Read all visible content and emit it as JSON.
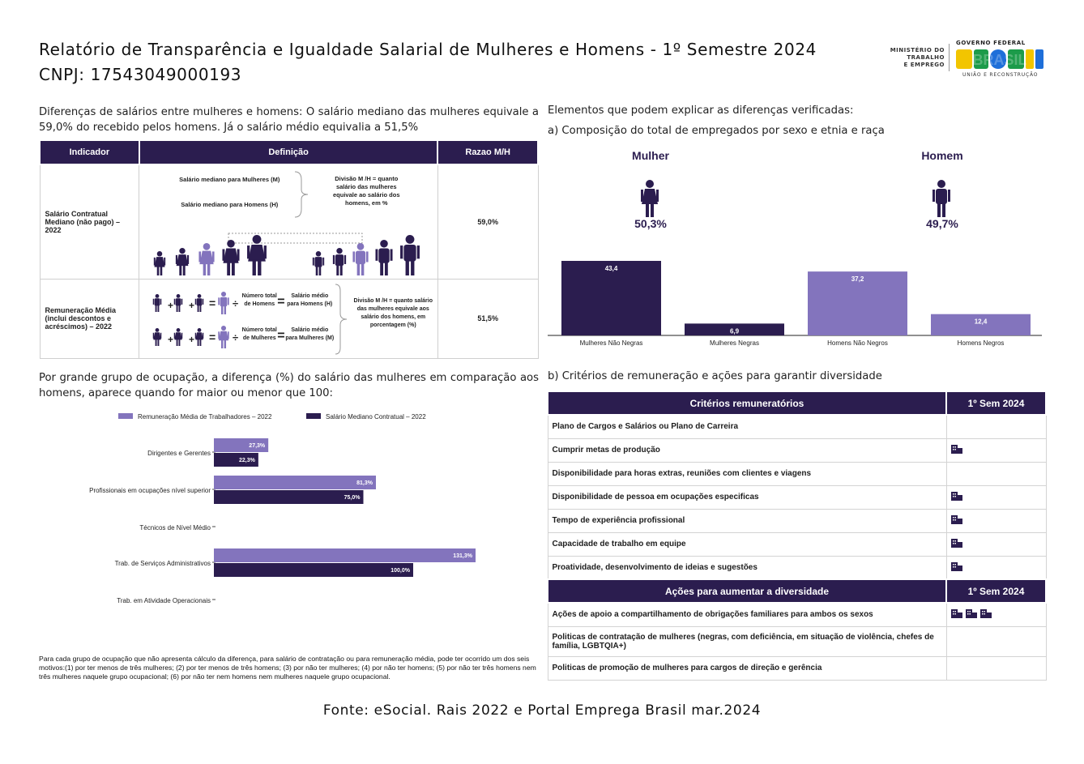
{
  "header": {
    "title": "Relatório de Transparência e Igualdade Salarial de Mulheres e Homens - 1º Semestre 2024",
    "cnpj": "CNPJ: 17543049000193",
    "logo_ministry": [
      "MINISTÉRIO DO",
      "TRABALHO",
      "E EMPREGO"
    ],
    "logo_gov": "GOVERNO FEDERAL",
    "logo_brasil": "BRASIL",
    "logo_slogan": "UNIÃO E RECONSTRUÇÃO"
  },
  "intro": "Diferenças de salários entre mulheres e homens: O salário mediano das mulheres equivale a 59,0% do recebido pelos homens. Já o salário médio equivalia a 51,5%",
  "indicator_table": {
    "headers": [
      "Indicador",
      "Definição",
      "Razao M/H"
    ],
    "rows": [
      {
        "indicator": "Salário Contratual Mediano (não pago) – 2022",
        "def_women": "Salário mediano para Mulheres (M)",
        "def_men": "Salário mediano para Homens (H)",
        "def_division": "Divisão M /H = quanto salário das mulheres equivale ao salário dos homens, em %",
        "ratio": "59,0%"
      },
      {
        "indicator": "Remuneração Média (inclui descontos e acréscimos) – 2022",
        "def_total_men": "Número total de Homens",
        "def_avg_men": "Salário médio para Homens (H)",
        "def_total_women": "Número total de Mulheres",
        "def_avg_women": "Salário médio para Mulheres (M)",
        "def_division": "Divisão M /H = quanto salário das mulheres equivale aos salário dos homens, em porcentagem (%)",
        "ratio": "51,5%"
      }
    ]
  },
  "occupation": {
    "title": "Por grande grupo de ocupação, a diferença (%) do salário das mulheres em comparação aos homens, aparece quando for maior ou menor que 100:",
    "note": "Para cada grupo de ocupação que não apresenta cálculo da diferença, para salário de contratação ou para remuneração média, pode ter ocorrido um dos seis motivos:(1) por ter menos de três mulheres; (2) por ter menos de três homens; (3) por não ter mulheres; (4) por não ter homens; (5) por não ter três homens nem três mulheres naquele grupo ocupacional; (6) por não ter nem homens nem mulheres naquele grupo ocupacional."
  },
  "chart_data": [
    {
      "type": "bar",
      "orientation": "horizontal",
      "categories": [
        "Dirigentes e Gerentes",
        "Profissionais em ocupações nível superior",
        "Técnicos de Nível Médio",
        "Trab. de Serviços Administrativos",
        "Trab. em Atividade Operacionais"
      ],
      "series": [
        {
          "name": "Remuneração Média de Trabalhadores – 2022",
          "values": [
            27.3,
            81.3,
            null,
            131.3,
            null
          ],
          "labels": [
            "27,3%",
            "81,3%",
            "",
            "131,3%",
            ""
          ],
          "color": "#8374bd"
        },
        {
          "name": "Salário Mediano Contratual – 2022",
          "values": [
            22.3,
            75.0,
            null,
            100.0,
            null
          ],
          "labels": [
            "22,3%",
            "75,0%",
            "",
            "100,0%",
            ""
          ],
          "color": "#2b1d4f"
        }
      ],
      "legend": "top"
    },
    {
      "type": "bar",
      "categories": [
        "Mulheres Não Negras",
        "Mulheres Negras",
        "Homens Não Negros",
        "Homens Negros"
      ],
      "values": [
        43.4,
        6.9,
        37.2,
        12.4
      ],
      "labels": [
        "43,4",
        "6,9",
        "37,2",
        "12,4"
      ],
      "colors": [
        "#2b1d4f",
        "#2b1d4f",
        "#8374bd",
        "#8374bd"
      ]
    }
  ],
  "right": {
    "heading": "Elementos que podem explicar as diferenças verificadas:",
    "section_a": "a) Composição do total de empregados por sexo e etnia e raça",
    "woman_label": "Mulher",
    "woman_pct": "50,3%",
    "man_label": "Homem",
    "man_pct": "49,7%",
    "section_b": "b) Critérios de remuneração e ações para garantir diversidade"
  },
  "criteria": {
    "header": [
      "Critérios remuneratórios",
      "1º Sem 2024"
    ],
    "rows": [
      {
        "label": "Plano de Cargos e Salários ou Plano de Carreira",
        "icons": 0
      },
      {
        "label": "Cumprir metas de produção",
        "icons": 1
      },
      {
        "label": "Disponibilidade para horas extras, reuniões com clientes e viagens",
        "icons": 0
      },
      {
        "label": "Disponibilidade de pessoa em ocupações especificas",
        "icons": 1
      },
      {
        "label": "Tempo de experiência profissional",
        "icons": 1
      },
      {
        "label": "Capacidade de trabalho em equipe",
        "icons": 1
      },
      {
        "label": "Proatividade, desenvolvimento de ideias e sugestões",
        "icons": 1
      }
    ]
  },
  "actions": {
    "header": [
      "Ações para aumentar a diversidade",
      "1º Sem 2024"
    ],
    "rows": [
      {
        "label": "Ações de apoio a compartilhamento de obrigações familiares para ambos os sexos",
        "icons": 3
      },
      {
        "label": "Politicas de contratação de mulheres (negras, com deficiência, em situação de violência, chefes de família, LGBTQIA+)",
        "icons": 0
      },
      {
        "label": "Politicas de promoção de mulheres para cargos de direção e gerência",
        "icons": 0
      }
    ]
  },
  "source": "Fonte: eSocial. Rais 2022 e Portal Emprega Brasil mar.2024"
}
